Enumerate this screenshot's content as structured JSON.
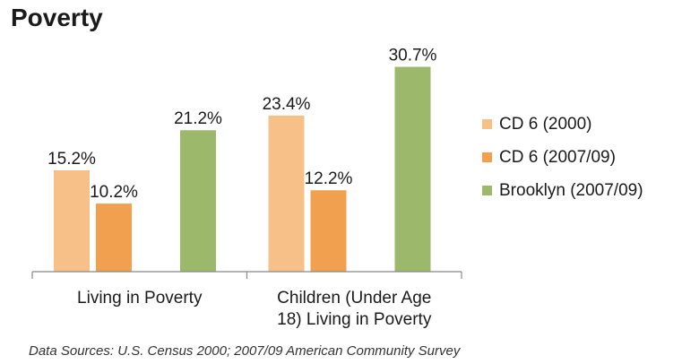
{
  "title": "Poverty",
  "source": "Data Sources: U.S. Census 2000; 2007/09 American Community Survey",
  "chart_data": {
    "type": "bar",
    "title": "Poverty",
    "categories": [
      [
        "Living in Poverty"
      ],
      [
        "Children (Under Age",
        "18) Living in Poverty"
      ]
    ],
    "series": [
      {
        "name": "CD 6 (2000)",
        "color": "#F8C089",
        "values": [
          15.2,
          23.4
        ],
        "labels": [
          "15.2%",
          "23.4%"
        ]
      },
      {
        "name": "CD 6 (2007/09)",
        "color": "#F0A04E",
        "values": [
          10.2,
          12.2
        ],
        "labels": [
          "10.2%",
          "12.2%"
        ]
      },
      {
        "name": "Brooklyn (2007/09)",
        "color": "#9CB86A",
        "values": [
          21.2,
          30.7
        ],
        "labels": [
          "21.2%",
          "30.7%"
        ]
      }
    ],
    "ylim": [
      0,
      34
    ],
    "grid": false,
    "legend": "right"
  }
}
